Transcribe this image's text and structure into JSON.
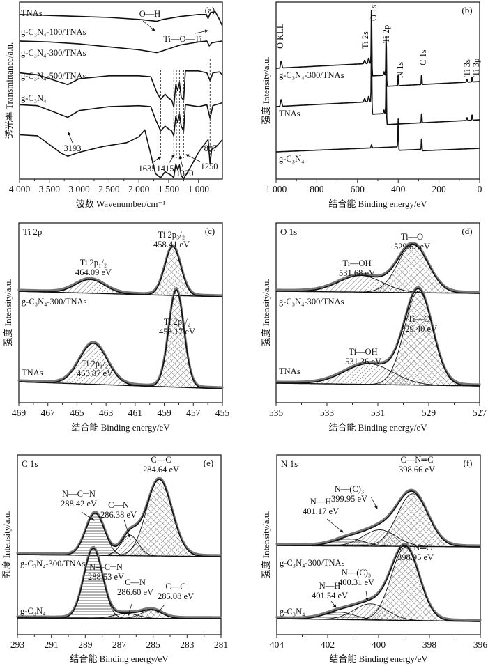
{
  "figure": {
    "y_label_a": "透光率 Transmittance/a.u.",
    "y_label_xps": "强度 Intensity/a.u.",
    "x_label_ir": "波数 Wavenumber/cm⁻¹",
    "x_label_xps": "结合能 Binding energy/eV"
  },
  "chart_data": [
    {
      "id": "a",
      "type": "line",
      "panel_label": "(a)",
      "title": "",
      "xlabel": "波数 Wavenumber/cm⁻¹",
      "ylabel": "透光率 Transmittance/a.u.",
      "xlim": [
        4000,
        600
      ],
      "x_ticks": [
        4000,
        3500,
        3000,
        2500,
        2000,
        1500,
        1000
      ],
      "x_tick_labels": [
        "4 000",
        "3 500",
        "3 000",
        "2 500",
        "2 000",
        "1 500",
        "1 000"
      ],
      "series": [
        {
          "name": "TNAs",
          "offset": 0.93,
          "points": [
            [
              4000,
              0.0
            ],
            [
              3500,
              -0.01
            ],
            [
              3000,
              -0.02
            ],
            [
              2500,
              -0.03
            ],
            [
              2000,
              -0.05
            ],
            [
              1700,
              -0.07
            ],
            [
              1600,
              -0.05
            ],
            [
              1500,
              -0.04
            ],
            [
              1300,
              -0.02
            ],
            [
              1000,
              0.0
            ],
            [
              870,
              0.0
            ],
            [
              840,
              -0.04
            ],
            [
              800,
              0.02
            ],
            [
              720,
              0.03
            ],
            [
              650,
              -0.05
            ],
            [
              600,
              -0.12
            ]
          ]
        },
        {
          "name": "g-C₃N₄-100/TNAs",
          "offset": 0.78,
          "points": [
            [
              4000,
              0.0
            ],
            [
              3500,
              -0.01
            ],
            [
              3000,
              -0.03
            ],
            [
              2500,
              -0.06
            ],
            [
              2000,
              -0.09
            ],
            [
              1700,
              -0.12
            ],
            [
              1500,
              -0.08
            ],
            [
              1300,
              -0.04
            ],
            [
              1000,
              -0.01
            ],
            [
              860,
              0.0
            ],
            [
              820,
              -0.05
            ],
            [
              780,
              -0.02
            ],
            [
              700,
              -0.01
            ],
            [
              600,
              0.0
            ]
          ]
        },
        {
          "name": "g-C₃N₄-300/TNAs",
          "offset": 0.6,
          "points": [
            [
              4000,
              0.0
            ],
            [
              3700,
              -0.02
            ],
            [
              3400,
              -0.08
            ],
            [
              3193,
              -0.12
            ],
            [
              3000,
              -0.06
            ],
            [
              2500,
              -0.03
            ],
            [
              2000,
              -0.03
            ],
            [
              1800,
              -0.04
            ],
            [
              1700,
              -0.2
            ],
            [
              1635,
              -0.27
            ],
            [
              1560,
              -0.22
            ],
            [
              1500,
              -0.26
            ],
            [
              1450,
              -0.28
            ],
            [
              1415,
              -0.35
            ],
            [
              1380,
              -0.12
            ],
            [
              1350,
              -0.18
            ],
            [
              1320,
              -0.1
            ],
            [
              1290,
              -0.25
            ],
            [
              1250,
              -0.28
            ],
            [
              1220,
              0.02
            ],
            [
              1000,
              0.02
            ],
            [
              860,
              0.0
            ],
            [
              807,
              -0.08
            ],
            [
              760,
              0.0
            ],
            [
              650,
              0.01
            ],
            [
              600,
              -0.02
            ]
          ]
        },
        {
          "name": "g-C₃N₄-500/TNAs",
          "offset": 0.42,
          "points": [
            [
              4000,
              0.0
            ],
            [
              3700,
              -0.01
            ],
            [
              3400,
              -0.08
            ],
            [
              3193,
              -0.13
            ],
            [
              3000,
              -0.06
            ],
            [
              2500,
              -0.02
            ],
            [
              2000,
              -0.01
            ],
            [
              1800,
              -0.02
            ],
            [
              1720,
              -0.15
            ],
            [
              1635,
              -0.27
            ],
            [
              1560,
              -0.22
            ],
            [
              1500,
              -0.25
            ],
            [
              1450,
              -0.27
            ],
            [
              1415,
              -0.32
            ],
            [
              1380,
              -0.12
            ],
            [
              1350,
              -0.18
            ],
            [
              1320,
              -0.1
            ],
            [
              1290,
              -0.22
            ],
            [
              1250,
              -0.27
            ],
            [
              1220,
              0.0
            ],
            [
              1000,
              -0.02
            ],
            [
              860,
              0.0
            ],
            [
              807,
              -0.14
            ],
            [
              760,
              -0.01
            ],
            [
              650,
              0.01
            ],
            [
              600,
              0.02
            ]
          ]
        },
        {
          "name": "g-C₃N₄",
          "offset": 0.25,
          "points": [
            [
              4000,
              0.0
            ],
            [
              3700,
              -0.01
            ],
            [
              3500,
              -0.1
            ],
            [
              3300,
              -0.19
            ],
            [
              3193,
              -0.22
            ],
            [
              3000,
              -0.18
            ],
            [
              2600,
              -0.12
            ],
            [
              2200,
              -0.08
            ],
            [
              2000,
              -0.02
            ],
            [
              1900,
              0.05
            ],
            [
              1800,
              -0.2
            ],
            [
              1720,
              -0.4
            ],
            [
              1635,
              -0.44
            ],
            [
              1560,
              -0.38
            ],
            [
              1500,
              -0.4
            ],
            [
              1450,
              -0.42
            ],
            [
              1415,
              -0.44
            ],
            [
              1380,
              -0.3
            ],
            [
              1350,
              -0.36
            ],
            [
              1320,
              -0.31
            ],
            [
              1290,
              -0.42
            ],
            [
              1250,
              -0.45
            ],
            [
              1150,
              -0.35
            ],
            [
              1000,
              -0.18
            ],
            [
              880,
              -0.08
            ],
            [
              840,
              -0.05
            ],
            [
              807,
              -0.3
            ],
            [
              780,
              -0.15
            ],
            [
              700,
              -0.12
            ],
            [
              600,
              -0.05
            ]
          ]
        }
      ],
      "annotations": [
        {
          "text": "O—H"
        },
        {
          "text": "Ti—O—Ti"
        },
        {
          "text": "3193",
          "x": 3193
        },
        {
          "text": "1635",
          "x": 1635
        },
        {
          "text": "1415",
          "x": 1415
        },
        {
          "text": "1320",
          "x": 1320
        },
        {
          "text": "1250",
          "x": 1250
        },
        {
          "text": "807",
          "x": 807
        }
      ],
      "dashed_lines_at": [
        1635,
        1415,
        1370,
        1320,
        1250,
        807
      ]
    },
    {
      "id": "b",
      "type": "line",
      "panel_label": "(b)",
      "xlabel": "结合能 Binding energy/eV",
      "ylabel": "强度 Intensity/a.u.",
      "xlim": [
        1000,
        0
      ],
      "x_ticks": [
        1000,
        800,
        600,
        400,
        200,
        0
      ],
      "x_tick_labels": [
        "1 000",
        "800",
        "600",
        "400",
        "200",
        "0"
      ],
      "peak_labels": [
        {
          "text": "O KLL",
          "x": 978
        },
        {
          "text": "Ti 2s",
          "x": 565
        },
        {
          "text": "O 1s",
          "x": 531
        },
        {
          "text": "Ti 2p",
          "x": 459
        },
        {
          "text": "N 1s",
          "x": 400
        },
        {
          "text": "C 1s",
          "x": 285
        },
        {
          "text": "Ti 3s",
          "x": 62
        },
        {
          "text": "Ti 3p",
          "x": 37
        }
      ],
      "series": [
        {
          "name": "g-C₃N₄-300/TNAs"
        },
        {
          "name": "TNAs"
        },
        {
          "name": "g-C₃N₄"
        }
      ]
    },
    {
      "id": "c",
      "type": "line",
      "panel_label": "(c)",
      "corner_label": "Ti 2p",
      "xlabel": "结合能 Binding energy/eV",
      "ylabel": "强度 Intensity/a.u.",
      "xlim": [
        469,
        455
      ],
      "x_ticks": [
        469,
        467,
        465,
        463,
        461,
        459,
        457,
        455
      ],
      "spectra": [
        {
          "name": "g-C₃N₄-300/TNAs",
          "position": "top",
          "peaks": [
            {
              "label": "Ti 2p₁/₂",
              "energy": "464.09 eV",
              "center": 464.09,
              "height": 0.28,
              "width": 1.0,
              "fill": "hatch"
            },
            {
              "label": "Ti 2p₃/₂",
              "energy": "458.41 eV",
              "center": 458.41,
              "height": 1.0,
              "width": 0.55,
              "fill": "cross"
            }
          ]
        },
        {
          "name": "TNAs",
          "position": "bottom",
          "peaks": [
            {
              "label": "Ti 2p₁/₂",
              "energy": "463.87 eV",
              "center": 463.87,
              "height": 0.42,
              "width": 0.95,
              "fill": "hatch"
            },
            {
              "label": "Ti 2p₃/₂",
              "energy": "458.17 eV",
              "center": 458.17,
              "height": 1.0,
              "width": 0.52,
              "fill": "cross"
            }
          ]
        }
      ]
    },
    {
      "id": "d",
      "type": "line",
      "panel_label": "(d)",
      "corner_label": "O 1s",
      "xlabel": "结合能 Binding energy/eV",
      "ylabel": "强度 Intensity/a.u.",
      "xlim": [
        535,
        527
      ],
      "x_ticks": [
        535,
        533,
        531,
        529,
        527
      ],
      "spectra": [
        {
          "name": "g-C₃N₄-300/TNAs",
          "position": "top",
          "peaks": [
            {
              "label": "Ti—OH",
              "energy": "531.68 eV",
              "center": 531.68,
              "height": 0.33,
              "width": 0.85,
              "fill": "hatch"
            },
            {
              "label": "Ti—O",
              "energy": "529.62 eV",
              "center": 529.62,
              "height": 0.95,
              "width": 0.6,
              "fill": "cross"
            }
          ]
        },
        {
          "name": "TNAs",
          "position": "bottom",
          "peaks": [
            {
              "label": "Ti—OH",
              "energy": "531.36 eV",
              "center": 531.36,
              "height": 0.22,
              "width": 0.95,
              "fill": "hatch"
            },
            {
              "label": "Ti—O",
              "energy": "529.40 eV",
              "center": 529.4,
              "height": 1.0,
              "width": 0.55,
              "fill": "cross"
            }
          ]
        }
      ]
    },
    {
      "id": "e",
      "type": "line",
      "panel_label": "(e)",
      "corner_label": "C 1s",
      "xlabel": "结合能 Binding energy/eV",
      "ylabel": "强度 Intensity/a.u.",
      "xlim": [
        293,
        281
      ],
      "x_ticks": [
        293,
        291,
        289,
        287,
        285,
        283,
        281
      ],
      "spectra": [
        {
          "name": "g-C₃N₄-300/TNAs",
          "position": "top",
          "peaks": [
            {
              "label": "N—C═N",
              "energy": "288.42 eV",
              "center": 288.42,
              "height": 0.55,
              "width": 0.55,
              "fill": "horiz"
            },
            {
              "label": "C—N",
              "energy": "286.38 eV",
              "center": 286.38,
              "height": 0.27,
              "width": 0.5,
              "fill": "hatch"
            },
            {
              "label": "C—C",
              "energy": "284.64 eV",
              "center": 284.64,
              "height": 1.0,
              "width": 0.75,
              "fill": "cross"
            }
          ]
        },
        {
          "name": "g-C₃N₄",
          "position": "bottom",
          "peaks": [
            {
              "label": "N—C═N",
              "energy": "288.53 eV",
              "center": 288.53,
              "height": 1.0,
              "width": 0.55,
              "fill": "horiz"
            },
            {
              "label": "C—N",
              "energy": "286.60 eV",
              "center": 286.6,
              "height": 0.07,
              "width": 0.7,
              "fill": "hatch"
            },
            {
              "label": "C—C",
              "energy": "285.08 eV",
              "center": 285.08,
              "height": 0.12,
              "width": 0.6,
              "fill": "cross"
            }
          ]
        }
      ]
    },
    {
      "id": "f",
      "type": "line",
      "panel_label": "(f)",
      "corner_label": "N 1s",
      "xlabel": "结合能 Binding energy/eV",
      "ylabel": "强度 Intensity/a.u.",
      "xlim": [
        404,
        396
      ],
      "x_ticks": [
        404,
        402,
        400,
        398,
        396
      ],
      "spectra": [
        {
          "name": "g-C₃N₄-300/TNAs",
          "position": "top",
          "peaks": [
            {
              "label": "N—H",
              "energy": "401.17 eV",
              "center": 401.17,
              "height": 0.12,
              "width": 0.6,
              "fill": "horiz"
            },
            {
              "label": "N—(C)₃",
              "energy": "399.95 eV",
              "center": 399.95,
              "height": 0.27,
              "width": 0.65,
              "fill": "hatch"
            },
            {
              "label": "C—N═C",
              "energy": "398.66 eV",
              "center": 398.66,
              "height": 0.87,
              "width": 0.6,
              "fill": "cross"
            }
          ]
        },
        {
          "name": "g-C₃N₄",
          "position": "bottom",
          "peaks": [
            {
              "label": "N—H",
              "energy": "401.54 eV",
              "center": 401.54,
              "height": 0.1,
              "width": 0.6,
              "fill": "horiz"
            },
            {
              "label": "N—(C)₃",
              "energy": "400.31 eV",
              "center": 400.31,
              "height": 0.22,
              "width": 0.65,
              "fill": "hatch"
            },
            {
              "label": "C—N═C",
              "energy": "398.95 eV",
              "center": 398.95,
              "height": 1.0,
              "width": 0.55,
              "fill": "cross"
            }
          ]
        }
      ]
    }
  ]
}
